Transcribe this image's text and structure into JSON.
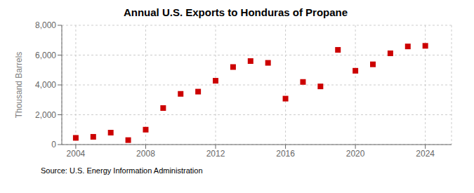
{
  "chart_data": {
    "type": "scatter",
    "title": "Annual U.S. Exports to Honduras of Propane",
    "y_label": "Thousand Barrels",
    "annotations": [
      "Source: U.S. Energy Information Administration"
    ],
    "x": [
      2004,
      2005,
      2006,
      2007,
      2008,
      2009,
      2010,
      2011,
      2012,
      2013,
      2014,
      2015,
      2016,
      2017,
      2018,
      2019,
      2020,
      2021,
      2022,
      2023,
      2024
    ],
    "values": [
      450,
      520,
      800,
      300,
      1000,
      2450,
      3400,
      3550,
      4280,
      5200,
      5600,
      5480,
      3080,
      4200,
      3900,
      6350,
      4950,
      5380,
      6120,
      6580,
      6620
    ],
    "color": "#cc0000",
    "marker": "square",
    "xlim": [
      2003.2,
      2025.5
    ],
    "xticks": [
      2004,
      2008,
      2012,
      2016,
      2020,
      2024
    ],
    "ylim": [
      0,
      8000
    ],
    "yticks": [
      0,
      {
        "value": 2000,
        "label": "2,000"
      },
      {
        "value": 4000,
        "label": "4,000"
      },
      {
        "value": 6000,
        "label": "6,000"
      },
      {
        "value": 8000,
        "label": "8,000"
      }
    ],
    "grid": true
  }
}
